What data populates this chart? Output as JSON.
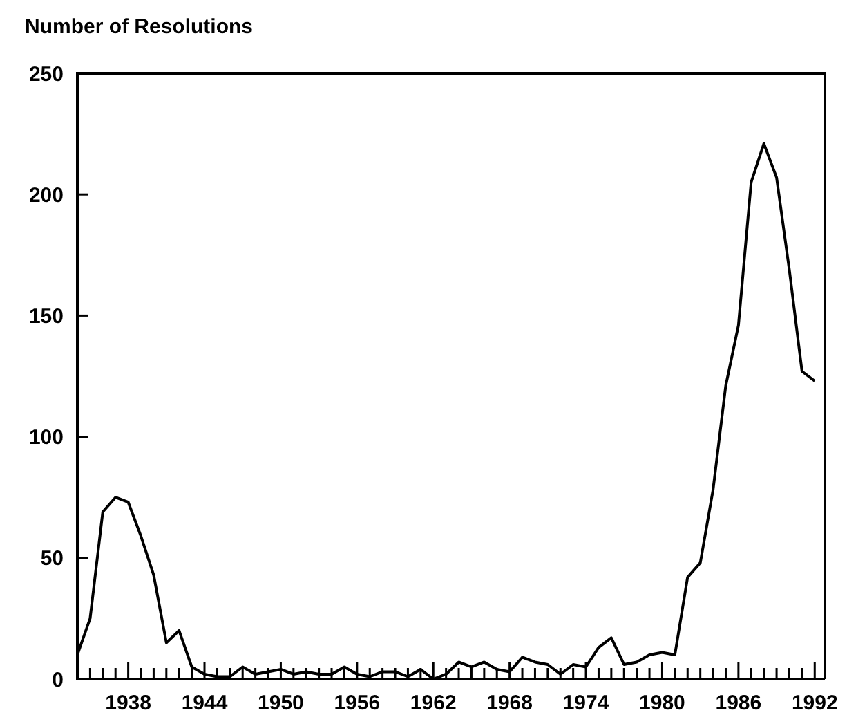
{
  "chart_data": {
    "type": "line",
    "title": "Number of Resolutions",
    "x": [
      1934,
      1935,
      1936,
      1937,
      1938,
      1939,
      1940,
      1941,
      1942,
      1943,
      1944,
      1945,
      1946,
      1947,
      1948,
      1949,
      1950,
      1951,
      1952,
      1953,
      1954,
      1955,
      1956,
      1957,
      1958,
      1959,
      1960,
      1961,
      1962,
      1963,
      1964,
      1965,
      1966,
      1967,
      1968,
      1969,
      1970,
      1971,
      1972,
      1973,
      1974,
      1975,
      1976,
      1977,
      1978,
      1979,
      1980,
      1981,
      1982,
      1983,
      1984,
      1985,
      1986,
      1987,
      1988,
      1989,
      1990,
      1991,
      1992
    ],
    "series": [
      {
        "color": "#000000",
        "values": [
          10,
          25,
          69,
          75,
          73,
          59,
          43,
          15,
          20,
          5,
          2,
          1,
          1,
          5,
          2,
          3,
          4,
          2,
          3,
          2,
          2,
          5,
          2,
          1,
          3,
          3,
          1,
          4,
          0,
          2,
          7,
          5,
          7,
          4,
          3,
          9,
          7,
          6,
          2,
          6,
          5,
          13,
          17,
          6,
          7,
          10,
          11,
          10,
          42,
          48,
          78,
          121,
          146,
          205,
          221,
          207,
          169,
          127,
          123
        ]
      }
    ],
    "xlim": [
      1934,
      1992.8
    ],
    "ylim": [
      0,
      250
    ],
    "xticks": [
      {
        "value": 1935,
        "label": null
      },
      {
        "value": 1936,
        "label": null
      },
      {
        "value": 1937,
        "label": null
      },
      1938,
      {
        "value": 1939,
        "label": null
      },
      {
        "value": 1940,
        "label": null
      },
      {
        "value": 1941,
        "label": null
      },
      {
        "value": 1942,
        "label": null
      },
      {
        "value": 1943,
        "label": null
      },
      1944,
      {
        "value": 1945,
        "label": null
      },
      {
        "value": 1946,
        "label": null
      },
      {
        "value": 1947,
        "label": null
      },
      {
        "value": 1948,
        "label": null
      },
      {
        "value": 1949,
        "label": null
      },
      1950,
      {
        "value": 1951,
        "label": null
      },
      {
        "value": 1952,
        "label": null
      },
      {
        "value": 1953,
        "label": null
      },
      {
        "value": 1954,
        "label": null
      },
      {
        "value": 1955,
        "label": null
      },
      1956,
      {
        "value": 1957,
        "label": null
      },
      {
        "value": 1958,
        "label": null
      },
      {
        "value": 1959,
        "label": null
      },
      {
        "value": 1960,
        "label": null
      },
      {
        "value": 1961,
        "label": null
      },
      1962,
      {
        "value": 1963,
        "label": null
      },
      {
        "value": 1964,
        "label": null
      },
      {
        "value": 1965,
        "label": null
      },
      {
        "value": 1966,
        "label": null
      },
      {
        "value": 1967,
        "label": null
      },
      1968,
      {
        "value": 1969,
        "label": null
      },
      {
        "value": 1970,
        "label": null
      },
      {
        "value": 1971,
        "label": null
      },
      {
        "value": 1972,
        "label": null
      },
      {
        "value": 1973,
        "label": null
      },
      1974,
      {
        "value": 1975,
        "label": null
      },
      {
        "value": 1976,
        "label": null
      },
      {
        "value": 1977,
        "label": null
      },
      {
        "value": 1978,
        "label": null
      },
      {
        "value": 1979,
        "label": null
      },
      1980,
      {
        "value": 1981,
        "label": null
      },
      {
        "value": 1982,
        "label": null
      },
      {
        "value": 1983,
        "label": null
      },
      {
        "value": 1984,
        "label": null
      },
      {
        "value": 1985,
        "label": null
      },
      1986,
      {
        "value": 1987,
        "label": null
      },
      {
        "value": 1988,
        "label": null
      },
      {
        "value": 1989,
        "label": null
      },
      {
        "value": 1990,
        "label": null
      },
      {
        "value": 1991,
        "label": null
      },
      1992
    ],
    "yticks": [
      0,
      50,
      100,
      150,
      200,
      250
    ],
    "grid": false,
    "marker": "none",
    "line_style": "solid"
  }
}
